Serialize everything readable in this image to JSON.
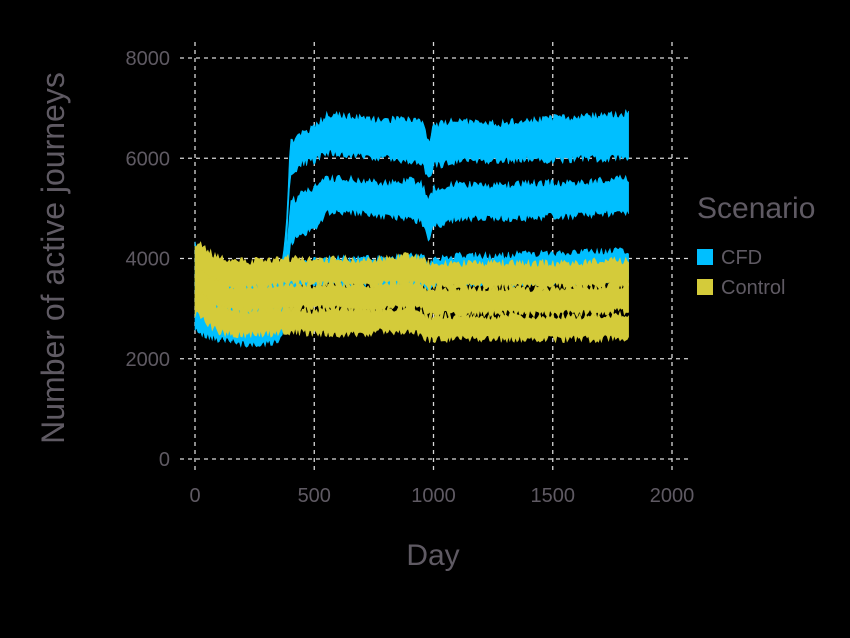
{
  "chart_data": {
    "type": "area",
    "xlabel": "Day",
    "ylabel": "Number of active journeys",
    "xlim": [
      0,
      2000
    ],
    "ylim": [
      0,
      8000
    ],
    "x_ticks": [
      0,
      500,
      1000,
      1500,
      2000
    ],
    "y_ticks": [
      0,
      2000,
      4000,
      6000,
      8000
    ],
    "x_tick_labels": [
      "0",
      "500",
      "1000",
      "1500",
      "2000"
    ],
    "y_tick_labels": [
      "0",
      "2000",
      "4000",
      "6000",
      "8000"
    ],
    "grid": true,
    "legend": {
      "title": "Scenario",
      "position": "right",
      "entries": [
        {
          "label": "CFD",
          "color": "#00bfff"
        },
        {
          "label": "Control",
          "color": "#d4cb3a"
        }
      ]
    },
    "series": [
      {
        "name": "CFD",
        "color": "#00bfff",
        "bands": [
          {
            "x": [
              0,
              20,
              50,
              100,
              150,
              200,
              300,
              360,
              380,
              400,
              450,
              500,
              550,
              600,
              700,
              800,
              900,
              950,
              980,
              1000,
              1050,
              1100,
              1200,
              1300,
              1400,
              1500,
              1600,
              1700,
              1820
            ],
            "lower": [
              3400,
              3100,
              2900,
              2750,
              2650,
              2600,
              2600,
              2650,
              3900,
              5700,
              5900,
              5950,
              6100,
              6100,
              6050,
              6000,
              5950,
              5900,
              5600,
              5850,
              5900,
              5950,
              5950,
              5950,
              6000,
              5950,
              6000,
              6000,
              6000
            ],
            "upper": [
              4300,
              4100,
              3900,
              3800,
              3700,
              3650,
              3650,
              3700,
              4500,
              6300,
              6500,
              6600,
              6850,
              6850,
              6800,
              6750,
              6800,
              6750,
              6300,
              6650,
              6700,
              6750,
              6700,
              6700,
              6750,
              6800,
              6800,
              6850,
              6900
            ]
          },
          {
            "x": [
              0,
              20,
              50,
              100,
              150,
              200,
              300,
              360,
              380,
              400,
              450,
              500,
              550,
              600,
              700,
              800,
              900,
              950,
              980,
              1000,
              1050,
              1100,
              1200,
              1300,
              1400,
              1500,
              1600,
              1700,
              1820
            ],
            "lower": [
              3000,
              2800,
              2600,
              2450,
              2350,
              2300,
              2300,
              2400,
              3200,
              4300,
              4500,
              4600,
              4900,
              4950,
              4900,
              4850,
              4800,
              4750,
              4400,
              4650,
              4700,
              4800,
              4800,
              4800,
              4800,
              4850,
              4850,
              4900,
              4900
            ],
            "upper": [
              3700,
              3500,
              3350,
              3250,
              3150,
              3100,
              3100,
              3150,
              3900,
              5100,
              5300,
              5400,
              5600,
              5600,
              5550,
              5500,
              5550,
              5500,
              5150,
              5400,
              5450,
              5500,
              5450,
              5450,
              5500,
              5500,
              5500,
              5550,
              5600
            ]
          },
          {
            "x": [
              0,
              20,
              50,
              100,
              150,
              200,
              300,
              360,
              380,
              400,
              450,
              500,
              550,
              600,
              700,
              800,
              900,
              950,
              980,
              1000,
              1050,
              1100,
              1200,
              1300,
              1400,
              1500,
              1600,
              1700,
              1820
            ],
            "lower": [
              2600,
              2500,
              2450,
              2400,
              2400,
              2400,
              2400,
              2450,
              2800,
              3400,
              3450,
              3450,
              3500,
              3500,
              3500,
              3450,
              3450,
              3450,
              3300,
              3450,
              3500,
              3500,
              3500,
              3500,
              3500,
              3500,
              3550,
              3550,
              3550
            ],
            "upper": [
              3000,
              2950,
              2900,
              2900,
              2900,
              2900,
              2900,
              2950,
              3300,
              3900,
              3950,
              3950,
              4000,
              4000,
              4000,
              4000,
              4050,
              4100,
              3900,
              4000,
              4000,
              4050,
              4050,
              4050,
              4100,
              4100,
              4100,
              4150,
              4150
            ]
          }
        ]
      },
      {
        "name": "Control",
        "color": "#d4cb3a",
        "bands": [
          {
            "x": [
              0,
              20,
              50,
              100,
              150,
              200,
              300,
              400,
              500,
              600,
              700,
              800,
              900,
              950,
              980,
              1000,
              1050,
              1100,
              1200,
              1300,
              1400,
              1500,
              1600,
              1700,
              1820
            ],
            "lower": [
              3500,
              3600,
              3550,
              3450,
              3400,
              3400,
              3450,
              3500,
              3500,
              3500,
              3450,
              3500,
              3500,
              3500,
              3350,
              3450,
              3450,
              3450,
              3450,
              3450,
              3450,
              3450,
              3450,
              3450,
              3450
            ],
            "upper": [
              4200,
              4300,
              4150,
              4000,
              3950,
              3950,
              3950,
              4000,
              3950,
              4000,
              3950,
              4000,
              4050,
              4000,
              3900,
              3950,
              3900,
              3900,
              3900,
              3900,
              3900,
              3900,
              3900,
              3950,
              3950
            ]
          },
          {
            "x": [
              0,
              20,
              50,
              100,
              150,
              200,
              300,
              400,
              500,
              600,
              700,
              800,
              900,
              950,
              980,
              1000,
              1050,
              1100,
              1200,
              1300,
              1400,
              1500,
              1600,
              1700,
              1820
            ],
            "lower": [
              3100,
              3200,
              3100,
              3000,
              2950,
              2950,
              2950,
              3000,
              3000,
              3000,
              2950,
              3000,
              3000,
              3000,
              2850,
              2900,
              2900,
              2900,
              2900,
              2900,
              2900,
              2900,
              2900,
              2950,
              2950
            ],
            "upper": [
              3700,
              3800,
              3650,
              3500,
              3450,
              3450,
              3450,
              3500,
              3450,
              3500,
              3450,
              3500,
              3550,
              3500,
              3350,
              3400,
              3400,
              3400,
              3400,
              3400,
              3400,
              3400,
              3400,
              3450,
              3450
            ]
          },
          {
            "x": [
              0,
              20,
              50,
              100,
              150,
              200,
              300,
              400,
              500,
              600,
              700,
              800,
              900,
              950,
              980,
              1000,
              1050,
              1100,
              1200,
              1300,
              1400,
              1500,
              1600,
              1700,
              1820
            ],
            "lower": [
              2900,
              2850,
              2700,
              2550,
              2500,
              2500,
              2500,
              2550,
              2500,
              2500,
              2500,
              2550,
              2550,
              2500,
              2350,
              2400,
              2400,
              2400,
              2400,
              2400,
              2400,
              2400,
              2400,
              2400,
              2400
            ],
            "upper": [
              3300,
              3350,
              3200,
              3050,
              2950,
              2950,
              3000,
              3000,
              2950,
              3000,
              2950,
              3000,
              3000,
              2950,
              2800,
              2850,
              2850,
              2850,
              2850,
              2850,
              2850,
              2850,
              2850,
              2850,
              2900
            ]
          }
        ]
      }
    ]
  }
}
